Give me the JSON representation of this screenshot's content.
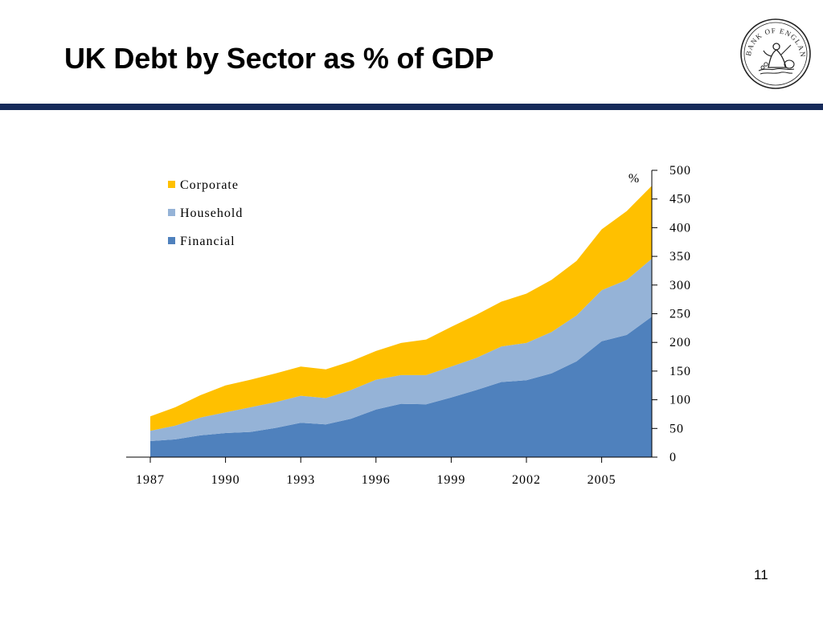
{
  "slide": {
    "title": "UK Debt by Sector as % of GDP",
    "page_number": "11"
  },
  "logo": {
    "name": "bank-of-england-seal",
    "text": "BANK OF ENGLAND"
  },
  "colors": {
    "title_rule": "#162a5a",
    "financial": "#4f81bd",
    "household": "#95b3d7",
    "corporate": "#ffc000"
  },
  "chart_data": {
    "type": "area",
    "stacked": true,
    "unit_label": "%",
    "x": [
      1987,
      1988,
      1989,
      1990,
      1991,
      1992,
      1993,
      1994,
      1995,
      1996,
      1997,
      1998,
      1999,
      2000,
      2001,
      2002,
      2003,
      2004,
      2005,
      2006,
      2007
    ],
    "x_ticks": [
      1987,
      1990,
      1993,
      1996,
      1999,
      2002,
      2005
    ],
    "y_ticks": [
      0,
      50,
      100,
      150,
      200,
      250,
      300,
      350,
      400,
      450,
      500
    ],
    "ylim": [
      0,
      500
    ],
    "y_axis_position": "right",
    "legend_position": "top-left",
    "grid": false,
    "series": [
      {
        "name": "Financial",
        "color": "#4f81bd",
        "values": [
          28,
          31,
          38,
          42,
          44,
          51,
          60,
          57,
          67,
          83,
          93,
          92,
          104,
          117,
          131,
          134,
          146,
          167,
          202,
          213,
          245
        ]
      },
      {
        "name": "Household",
        "color": "#95b3d7",
        "values": [
          18,
          24,
          31,
          36,
          43,
          45,
          47,
          46,
          50,
          52,
          50,
          51,
          54,
          56,
          62,
          65,
          72,
          80,
          89,
          96,
          101
        ]
      },
      {
        "name": "Corporate",
        "color": "#ffc000",
        "values": [
          25,
          32,
          39,
          47,
          48,
          50,
          51,
          50,
          50,
          50,
          56,
          62,
          69,
          75,
          78,
          86,
          91,
          95,
          106,
          120,
          127
        ]
      }
    ]
  }
}
